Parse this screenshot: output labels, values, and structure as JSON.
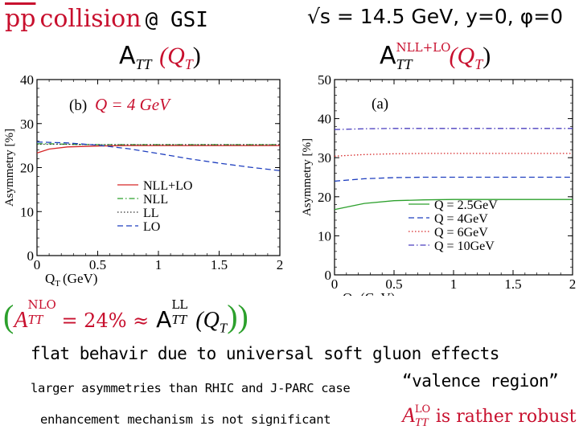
{
  "header": {
    "pp_label": "pp",
    "collision_word": "collision",
    "at_gsi": "@ GSI",
    "kinematics": "√s = 14.5 GeV, y=0, φ=0"
  },
  "formulas": {
    "left": {
      "main": "A",
      "sub": "TT",
      "arg": "(Q",
      "arg_sub": "T",
      "close": ")"
    },
    "right": {
      "main": "A",
      "sub": "TT",
      "sup": "NLL+LO",
      "arg": "(Q",
      "arg_sub": "T",
      "close": ")"
    },
    "ratio": {
      "open": "(",
      "a1": "A",
      "a1_sub": "TT",
      "a1_sup": "NLO",
      "eq": "= 24% ≈",
      "a2": "A",
      "a2_sub": "TT",
      "a2_sup": "LL",
      "arg": "(Q",
      "arg_sub": "T",
      "close": "))"
    },
    "robust": {
      "a": "A",
      "a_sub": "TT",
      "a_sup": "LO",
      "text": "is rather robust"
    }
  },
  "texts": {
    "flat": "flat behavir due to universal soft gluon effects",
    "larger": "larger asymmetries than RHIC and J-PARC case",
    "valence": "“valence region”",
    "enhancement": "enhancement mechanism is not significant"
  },
  "chart_data": [
    {
      "type": "line",
      "panel_label": "(b)",
      "panel_annotation": "Q = 4 GeV",
      "xlabel": "Q",
      "xlabel_sub": "T",
      "xlabel_unit": "(GeV)",
      "ylabel": "Asymmetry [%]",
      "xlim": [
        0,
        2
      ],
      "ylim": [
        0,
        40
      ],
      "xticks": [
        "0",
        "0.5",
        "1",
        "1.5",
        "2"
      ],
      "yticks": [
        "0",
        "10",
        "20",
        "30",
        "40"
      ],
      "legend": [
        "NLL+LO",
        "NLL",
        "LL",
        "LO"
      ],
      "legend_position": "bottom-right",
      "series": [
        {
          "name": "NLL+LO",
          "color": "#d62728",
          "dash": "solid",
          "x": [
            0,
            0.1,
            0.25,
            0.5,
            0.75,
            1,
            1.25,
            1.5,
            1.75,
            2
          ],
          "y": [
            23.3,
            24.2,
            24.7,
            24.9,
            25.0,
            25.0,
            25.0,
            25.0,
            25.0,
            25.0
          ]
        },
        {
          "name": "NLL",
          "color": "#2ca02c",
          "dash": "dashdot",
          "x": [
            0,
            0.1,
            0.25,
            0.5,
            0.75,
            1,
            1.25,
            1.5,
            1.75,
            2
          ],
          "y": [
            25.4,
            25.4,
            25.3,
            25.2,
            25.2,
            25.2,
            25.2,
            25.2,
            25.2,
            25.2
          ]
        },
        {
          "name": "LL",
          "color": "#333333",
          "dash": "dotted",
          "x": [
            0,
            0.25,
            0.5,
            0.75,
            1,
            1.25,
            1.5,
            1.75,
            2
          ],
          "y": [
            25.3,
            25.3,
            25.2,
            25.2,
            25.2,
            25.2,
            25.2,
            25.2,
            25.2
          ]
        },
        {
          "name": "LO",
          "color": "#1f3fbf",
          "dash": "dashed",
          "x": [
            0,
            0.25,
            0.5,
            0.75,
            1,
            1.25,
            1.5,
            1.75,
            2
          ],
          "y": [
            25.8,
            25.6,
            25.1,
            24.3,
            23.2,
            22.0,
            21.0,
            20.1,
            19.3
          ]
        }
      ]
    },
    {
      "type": "line",
      "panel_label": "(a)",
      "xlabel": "Q",
      "xlabel_sub": "T",
      "xlabel_unit": "(GeV)",
      "ylabel": "Asymmetry [%]",
      "xlim": [
        0,
        2
      ],
      "ylim": [
        0,
        50
      ],
      "xticks": [
        "0",
        "0.5",
        "1",
        "1.5",
        "2"
      ],
      "yticks": [
        "0",
        "10",
        "20",
        "30",
        "40",
        "50"
      ],
      "legend": [
        "Q = 2.5GeV",
        "Q = 4GeV",
        "Q = 6GeV",
        "Q = 10GeV"
      ],
      "legend_position": "bottom-right",
      "series": [
        {
          "name": "Q = 2.5GeV",
          "color": "#2ca02c",
          "dash": "solid",
          "x": [
            0,
            0.25,
            0.5,
            0.75,
            1,
            1.25,
            1.5,
            1.75,
            2
          ],
          "y": [
            16.7,
            18.3,
            19.0,
            19.2,
            19.3,
            19.3,
            19.3,
            19.3,
            19.3
          ]
        },
        {
          "name": "Q = 4GeV",
          "color": "#1f3fbf",
          "dash": "dashed",
          "x": [
            0,
            0.25,
            0.5,
            0.75,
            1,
            1.25,
            1.5,
            1.75,
            2
          ],
          "y": [
            24.0,
            24.6,
            24.9,
            25.0,
            25.0,
            25.0,
            25.0,
            25.0,
            25.0
          ]
        },
        {
          "name": "Q = 6GeV",
          "color": "#d62728",
          "dash": "dotted",
          "x": [
            0,
            0.25,
            0.5,
            0.75,
            1,
            1.25,
            1.5,
            1.75,
            2
          ],
          "y": [
            30.4,
            30.8,
            31.0,
            31.1,
            31.1,
            31.1,
            31.1,
            31.1,
            31.1
          ]
        },
        {
          "name": "Q = 10GeV",
          "color": "#4b3fbf",
          "dash": "dashdot",
          "x": [
            0,
            0.25,
            0.5,
            0.75,
            1,
            1.25,
            1.5,
            1.75,
            2
          ],
          "y": [
            37.2,
            37.4,
            37.5,
            37.5,
            37.5,
            37.5,
            37.5,
            37.5,
            37.5
          ]
        }
      ]
    }
  ]
}
